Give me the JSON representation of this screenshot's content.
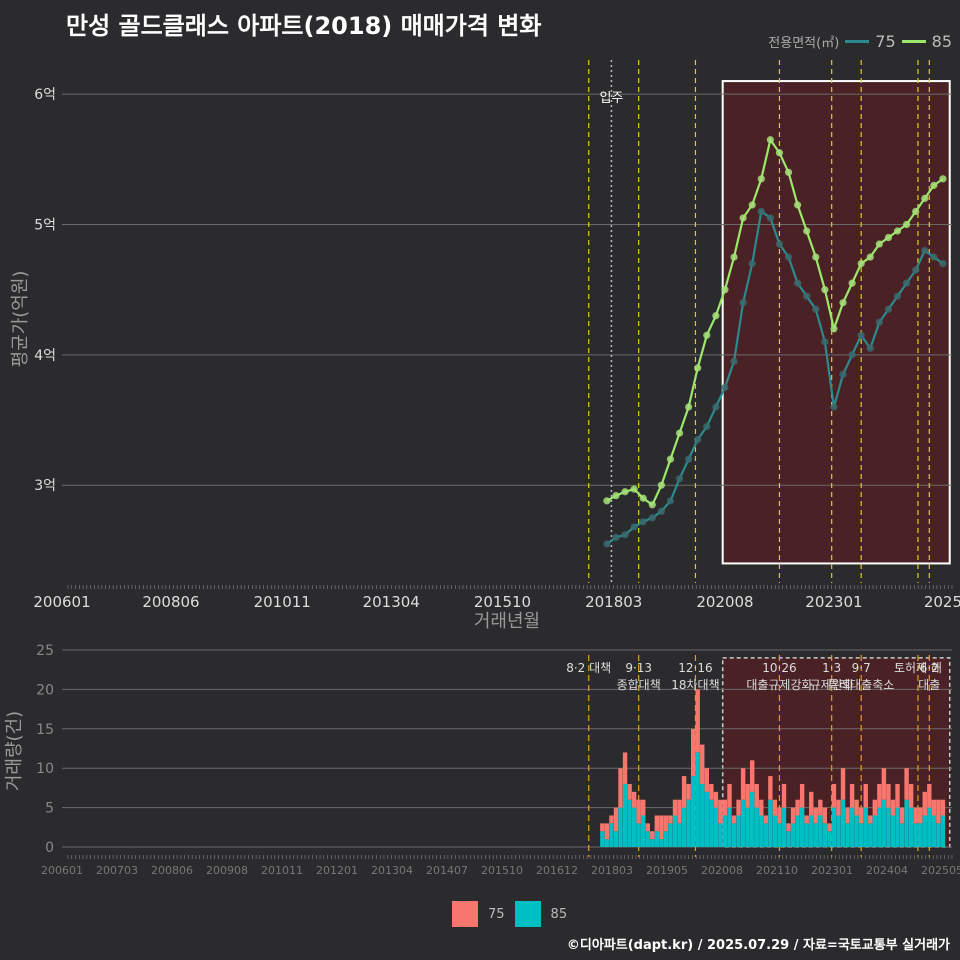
{
  "title": "만성 골드클래스 아파트(2018) 매매가격 변화",
  "legend": {
    "title": "전용면적(㎡)",
    "series": [
      {
        "name": "75",
        "line_color": "#2a8a8f",
        "point_color": "#3a6a6e",
        "bar_color": "#f8766d"
      },
      {
        "name": "85",
        "line_color": "#9be86a",
        "point_color": "#a6e07a",
        "bar_color": "#00bfc4"
      }
    ]
  },
  "credit": "©디아파트(dapt.kr) / 2025.07.29 / 자료=국토교통부 실거래가",
  "chart_data": [
    {
      "type": "line",
      "title": "평균가(억원) by 거래년월",
      "xlabel": "거래년월",
      "ylabel": "평균가(억원)",
      "xlim": [
        2006.0,
        2025.6
      ],
      "ylim": [
        2.25,
        6.3
      ],
      "x_ticks": [
        "200601",
        "200806",
        "201011",
        "201304",
        "201510",
        "201803",
        "202008",
        "202301",
        "2025"
      ],
      "y_ticks": [
        "3억",
        "4억",
        "5억",
        "6억"
      ],
      "annotations": [
        {
          "label": "입주",
          "x": 2018.1
        }
      ],
      "policy_lines_x": [
        2017.6,
        2018.7,
        2019.95,
        2021.8,
        2022.95,
        2023.6,
        2024.85,
        2025.1
      ],
      "highlight_range_x": [
        2020.55,
        2025.55
      ],
      "highlight_range_y": [
        2.4,
        6.1
      ],
      "series": [
        {
          "name": "75",
          "x": [
            2018.0,
            2018.2,
            2018.4,
            2018.6,
            2018.8,
            2019.0,
            2019.2,
            2019.4,
            2019.6,
            2019.8,
            2020.0,
            2020.2,
            2020.4,
            2020.6,
            2020.8,
            2021.0,
            2021.2,
            2021.4,
            2021.6,
            2021.8,
            2022.0,
            2022.2,
            2022.4,
            2022.6,
            2022.8,
            2023.0,
            2023.2,
            2023.4,
            2023.6,
            2023.8,
            2024.0,
            2024.2,
            2024.4,
            2024.6,
            2024.8,
            2025.0,
            2025.2,
            2025.4
          ],
          "values": [
            2.55,
            2.6,
            2.62,
            2.68,
            2.72,
            2.75,
            2.8,
            2.88,
            3.05,
            3.2,
            3.35,
            3.45,
            3.6,
            3.75,
            3.95,
            4.4,
            4.7,
            5.1,
            5.05,
            4.85,
            4.75,
            4.55,
            4.45,
            4.35,
            4.1,
            3.6,
            3.85,
            4.0,
            4.15,
            4.05,
            4.25,
            4.35,
            4.45,
            4.55,
            4.65,
            4.8,
            4.75,
            4.7
          ]
        },
        {
          "name": "85",
          "x": [
            2018.0,
            2018.2,
            2018.4,
            2018.6,
            2018.8,
            2019.0,
            2019.2,
            2019.4,
            2019.6,
            2019.8,
            2020.0,
            2020.2,
            2020.4,
            2020.6,
            2020.8,
            2021.0,
            2021.2,
            2021.4,
            2021.6,
            2021.8,
            2022.0,
            2022.2,
            2022.4,
            2022.6,
            2022.8,
            2023.0,
            2023.2,
            2023.4,
            2023.6,
            2023.8,
            2024.0,
            2024.2,
            2024.4,
            2024.6,
            2024.8,
            2025.0,
            2025.2,
            2025.4
          ],
          "values": [
            2.88,
            2.92,
            2.95,
            2.97,
            2.9,
            2.85,
            3.0,
            3.2,
            3.4,
            3.6,
            3.9,
            4.15,
            4.3,
            4.5,
            4.75,
            5.05,
            5.15,
            5.35,
            5.65,
            5.55,
            5.4,
            5.15,
            4.95,
            4.75,
            4.5,
            4.2,
            4.4,
            4.55,
            4.7,
            4.75,
            4.85,
            4.9,
            4.95,
            5.0,
            5.1,
            5.2,
            5.3,
            5.35
          ]
        }
      ]
    },
    {
      "type": "bar",
      "stacked": true,
      "title": "거래량(건) by 거래년월",
      "xlabel": "",
      "ylabel": "거래량(건)",
      "ylim": [
        0,
        25
      ],
      "y_ticks": [
        "0",
        "5",
        "10",
        "15",
        "20",
        "25"
      ],
      "x_ticks": [
        "200601",
        "200703",
        "200806",
        "200908",
        "201011",
        "201201",
        "201304",
        "201407",
        "201510",
        "201612",
        "201803",
        "201905",
        "202008",
        "202110",
        "202301",
        "202404",
        "202505"
      ],
      "policy_labels": [
        {
          "x": 2017.6,
          "lines": [
            "8·2 대책"
          ]
        },
        {
          "x": 2018.7,
          "lines": [
            "9·13",
            "종합대책"
          ]
        },
        {
          "x": 2019.95,
          "lines": [
            "12·16",
            "18차대책"
          ]
        },
        {
          "x": 2021.8,
          "lines": [
            "10·26",
            "대출규제강화"
          ]
        },
        {
          "x": 2022.95,
          "lines": [
            "1·3",
            "규제완화"
          ]
        },
        {
          "x": 2023.6,
          "lines": [
            "9·7",
            "특례대출축소"
          ]
        },
        {
          "x": 2024.85,
          "lines": [
            "토허제 해"
          ]
        },
        {
          "x": 2025.1,
          "lines": [
            "6·2",
            "대출"
          ]
        }
      ],
      "x": [
        2017.9,
        2018.0,
        2018.1,
        2018.2,
        2018.3,
        2018.4,
        2018.5,
        2018.6,
        2018.7,
        2018.8,
        2018.9,
        2019.0,
        2019.1,
        2019.2,
        2019.3,
        2019.4,
        2019.5,
        2019.6,
        2019.7,
        2019.8,
        2019.9,
        2020.0,
        2020.1,
        2020.2,
        2020.3,
        2020.4,
        2020.5,
        2020.6,
        2020.7,
        2020.8,
        2020.9,
        2021.0,
        2021.1,
        2021.2,
        2021.3,
        2021.4,
        2021.5,
        2021.6,
        2021.7,
        2021.8,
        2021.9,
        2022.0,
        2022.1,
        2022.2,
        2022.3,
        2022.4,
        2022.5,
        2022.6,
        2022.7,
        2022.8,
        2022.9,
        2023.0,
        2023.1,
        2023.2,
        2023.3,
        2023.4,
        2023.5,
        2023.6,
        2023.7,
        2023.8,
        2023.9,
        2024.0,
        2024.1,
        2024.2,
        2024.3,
        2024.4,
        2024.5,
        2024.6,
        2024.7,
        2024.8,
        2024.9,
        2025.0,
        2025.1,
        2025.2,
        2025.3,
        2025.4
      ],
      "series": [
        {
          "name": "75",
          "values": [
            1,
            2,
            1,
            3,
            5,
            4,
            2,
            2,
            3,
            2,
            1,
            1,
            2,
            3,
            2,
            1,
            2,
            3,
            4,
            2,
            6,
            8,
            5,
            3,
            2,
            2,
            3,
            2,
            3,
            1,
            2,
            4,
            3,
            4,
            3,
            2,
            1,
            3,
            2,
            2,
            3,
            1,
            2,
            2,
            3,
            1,
            3,
            2,
            2,
            2,
            1,
            3,
            2,
            4,
            2,
            3,
            2,
            2,
            3,
            1,
            2,
            3,
            4,
            3,
            2,
            3,
            2,
            4,
            3,
            2,
            2,
            3,
            3,
            2,
            3,
            2
          ]
        },
        {
          "name": "85",
          "values": [
            2,
            1,
            3,
            2,
            5,
            8,
            6,
            5,
            3,
            4,
            2,
            1,
            2,
            1,
            2,
            3,
            4,
            3,
            5,
            6,
            9,
            12,
            8,
            7,
            6,
            5,
            3,
            4,
            5,
            3,
            4,
            6,
            5,
            7,
            5,
            4,
            3,
            6,
            4,
            3,
            5,
            2,
            3,
            4,
            5,
            3,
            4,
            3,
            4,
            3,
            2,
            5,
            4,
            6,
            3,
            5,
            4,
            3,
            5,
            3,
            4,
            5,
            6,
            5,
            4,
            5,
            3,
            6,
            5,
            3,
            3,
            4,
            5,
            4,
            3,
            4
          ]
        }
      ]
    }
  ]
}
